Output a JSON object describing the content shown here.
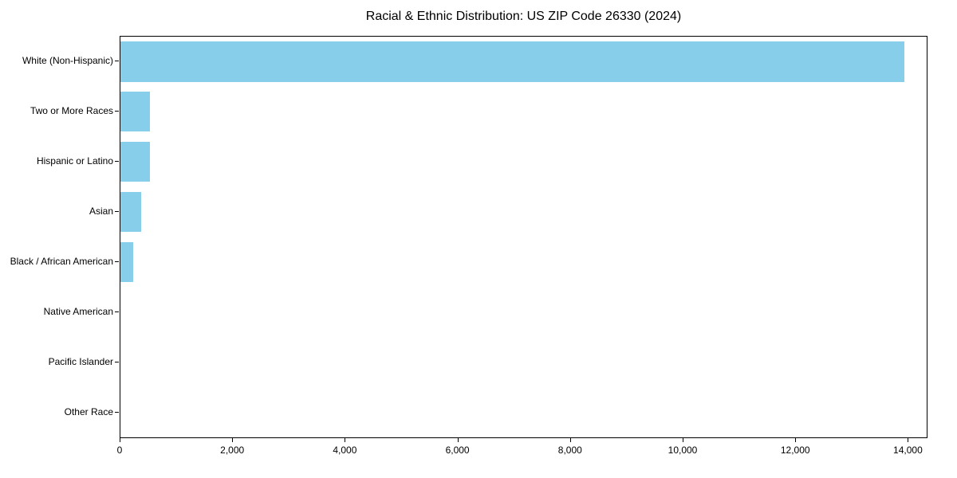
{
  "chart_data": {
    "type": "bar",
    "orientation": "horizontal",
    "title": "Racial & Ethnic Distribution: US ZIP Code 26330 (2024)",
    "xlabel": "",
    "ylabel": "",
    "categories": [
      "White (Non-Hispanic)",
      "Two or More Races",
      "Hispanic or Latino",
      "Asian",
      "Black / African American",
      "Native American",
      "Pacific Islander",
      "Other Race"
    ],
    "values": [
      13920,
      530,
      520,
      370,
      230,
      0,
      0,
      0
    ],
    "xlim": [
      0,
      14320
    ],
    "x_ticks": [
      0,
      2000,
      4000,
      6000,
      8000,
      10000,
      12000,
      14000
    ],
    "x_tick_labels": [
      "0",
      "2,000",
      "4,000",
      "6,000",
      "8,000",
      "10,000",
      "12,000",
      "14,000"
    ],
    "bar_color": "#87CEEB",
    "grid": false,
    "legend": "none"
  }
}
